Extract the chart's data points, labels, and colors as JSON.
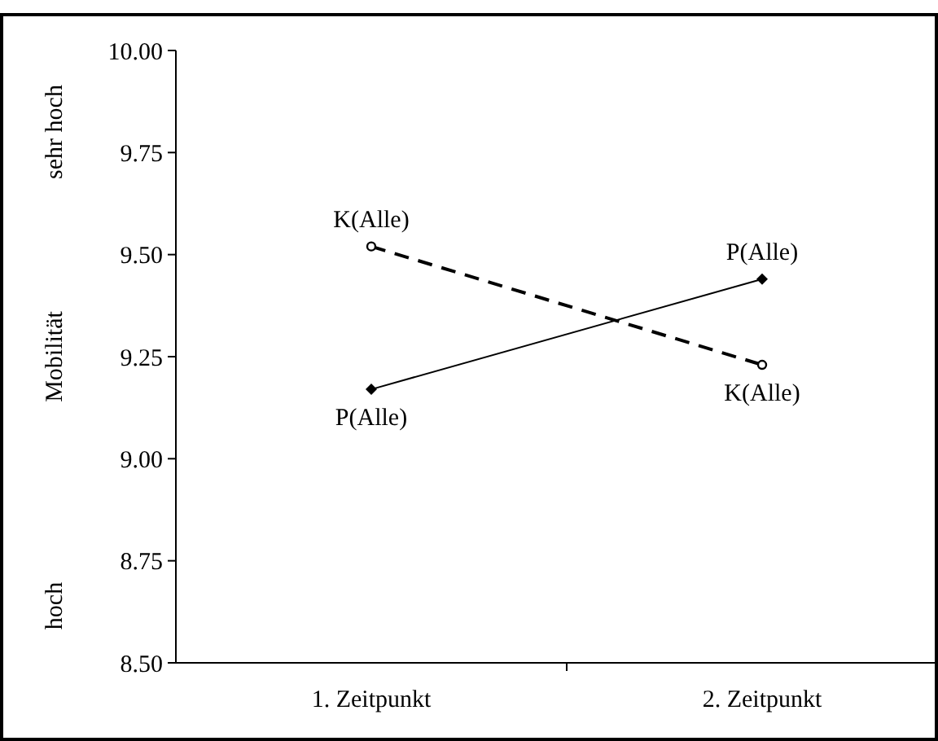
{
  "chart_data": {
    "type": "line",
    "ylabel": "Mobilität",
    "annotations": [
      "sehr hoch",
      "hoch"
    ],
    "categories": [
      "1. Zeitpunkt",
      "2. Zeitpunkt"
    ],
    "series": [
      {
        "name": "K(Alle)",
        "color": "#000000",
        "values": [
          9.52,
          9.23
        ],
        "marker": "circle",
        "line_style": "dashed"
      },
      {
        "name": "P(Alle)",
        "color": "#000000",
        "values": [
          9.17,
          9.44
        ],
        "marker": "diamond",
        "line_style": "solid"
      }
    ],
    "ylim": [
      8.5,
      10
    ],
    "yticks": [
      {
        "value": 8.5,
        "label": "8.50"
      },
      {
        "value": 8.75,
        "label": "8.75"
      },
      {
        "value": 9,
        "label": "9.00"
      },
      {
        "value": 9.25,
        "label": "9.25"
      },
      {
        "value": 9.5,
        "label": "9.50"
      },
      {
        "value": 9.75,
        "label": "9.75"
      },
      {
        "value": 10,
        "label": "10.00"
      }
    ],
    "grid": false
  }
}
